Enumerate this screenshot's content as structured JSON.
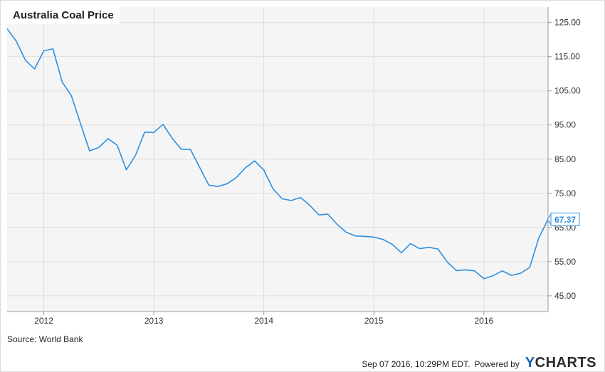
{
  "title": "Australia Coal Price",
  "source": "Source: World Bank",
  "footer": {
    "timestamp": "Sep 07 2016, 10:29PM EDT.",
    "powered_by": "Powered by",
    "brand_y": "Y",
    "brand_rest": "CHARTS"
  },
  "colors": {
    "line": "#2f8fdf",
    "plot_bg": "#f5f5f5",
    "grid": "#dedede"
  },
  "chart_data": {
    "type": "line",
    "title": "Australia Coal Price",
    "xlabel": "",
    "ylabel": "",
    "x_ticks": [
      "2012",
      "2013",
      "2014",
      "2015",
      "2016"
    ],
    "y_ticks": [
      "45.00",
      "55.00",
      "65.00",
      "75.00",
      "85.00",
      "95.00",
      "105.00",
      "115.00",
      "125.00"
    ],
    "ylim": [
      40.4,
      129.5
    ],
    "xlim": [
      "2011-09",
      "2016-08"
    ],
    "grid": true,
    "last_value_label": "67.37",
    "series": [
      {
        "x": [
          "2011-09",
          "2011-10",
          "2011-11",
          "2011-12",
          "2012-01",
          "2012-02",
          "2012-03",
          "2012-04",
          "2012-05",
          "2012-06",
          "2012-07",
          "2012-08",
          "2012-09",
          "2012-10",
          "2012-11",
          "2012-12",
          "2013-01",
          "2013-02",
          "2013-03",
          "2013-04",
          "2013-05",
          "2013-06",
          "2013-07",
          "2013-08",
          "2013-09",
          "2013-10",
          "2013-11",
          "2013-12",
          "2014-01",
          "2014-02",
          "2014-03",
          "2014-04",
          "2014-05",
          "2014-06",
          "2014-07",
          "2014-08",
          "2014-09",
          "2014-10",
          "2014-11",
          "2014-12",
          "2015-01",
          "2015-02",
          "2015-03",
          "2015-04",
          "2015-05",
          "2015-06",
          "2015-07",
          "2015-08",
          "2015-09",
          "2015-10",
          "2015-11",
          "2015-12",
          "2016-01",
          "2016-02",
          "2016-03",
          "2016-04",
          "2016-05",
          "2016-06",
          "2016-07",
          "2016-08"
        ],
        "values": [
          123.2,
          119.5,
          113.9,
          111.4,
          116.7,
          117.3,
          107.6,
          103.6,
          95.4,
          87.4,
          88.4,
          91.0,
          89.1,
          81.9,
          86.1,
          92.9,
          92.8,
          95.2,
          91.1,
          87.9,
          87.8,
          82.6,
          77.4,
          77.0,
          77.8,
          79.6,
          82.5,
          84.5,
          81.8,
          76.3,
          73.4,
          72.9,
          73.8,
          71.5,
          68.7,
          68.9,
          65.9,
          63.6,
          62.5,
          62.4,
          62.2,
          61.5,
          60.1,
          57.6,
          60.3,
          58.8,
          59.2,
          58.7,
          54.9,
          52.4,
          52.6,
          52.3,
          50.0,
          50.9,
          52.3,
          51.0,
          51.6,
          53.3,
          62.0,
          67.37
        ]
      }
    ]
  }
}
